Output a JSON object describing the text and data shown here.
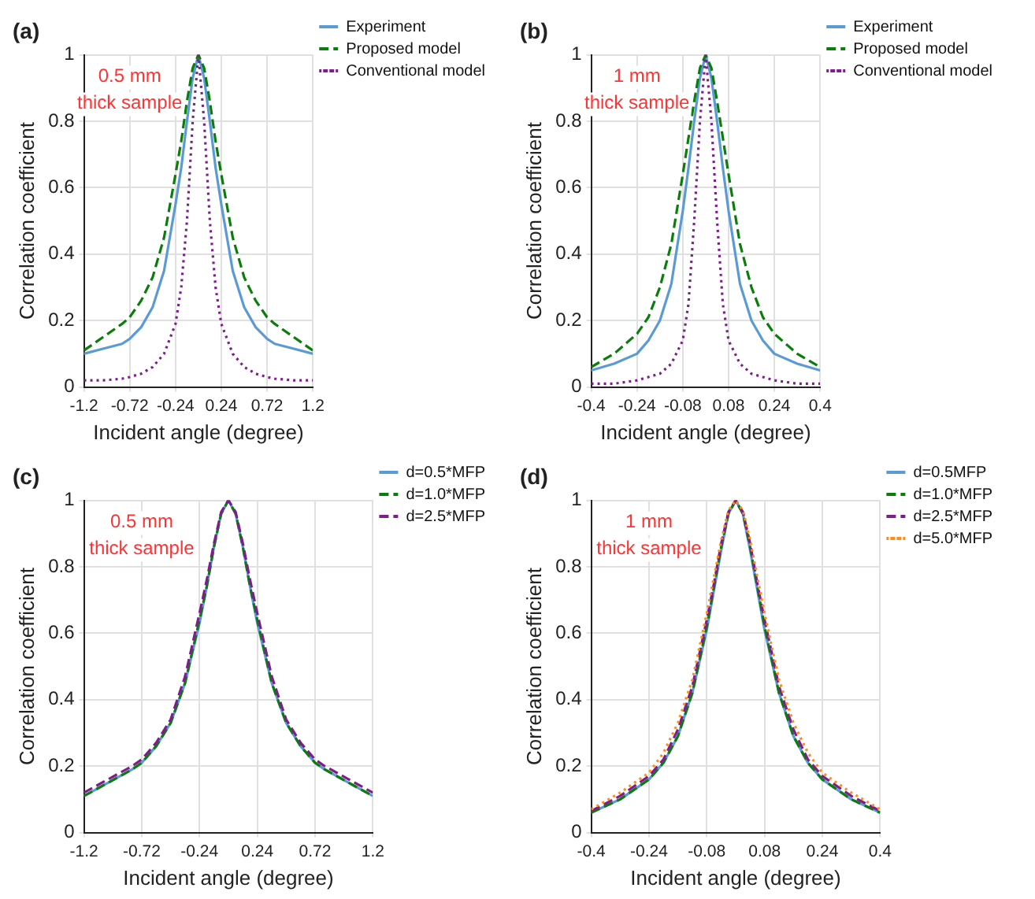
{
  "chart_data": [
    {
      "type": "line",
      "title": "(a)",
      "xlabel": "Incident angle (degree)",
      "ylabel": "Correlation coefficient",
      "annotations": [
        "0.5 mm\nthick sample"
      ],
      "x": [
        -1.2,
        -1.0,
        -0.8,
        -0.72,
        -0.6,
        -0.48,
        -0.36,
        -0.24,
        -0.18,
        -0.12,
        -0.06,
        0,
        0.06,
        0.12,
        0.18,
        0.24,
        0.36,
        0.48,
        0.6,
        0.72,
        0.8,
        1.0,
        1.2
      ],
      "xlim": [
        -1.2,
        1.2
      ],
      "xticks": [
        -1.2,
        -0.72,
        -0.24,
        0.24,
        0.72,
        1.2
      ],
      "ylim": [
        0,
        1
      ],
      "yticks": [
        0,
        0.2,
        0.4,
        0.6,
        0.8,
        1
      ],
      "grid": true,
      "legend": "top right",
      "marker": "none",
      "series": [
        {
          "name": "Experiment",
          "color": "#5b9bd5",
          "line_style": "solid",
          "values": [
            0.1,
            0.115,
            0.13,
            0.145,
            0.18,
            0.24,
            0.35,
            0.55,
            0.66,
            0.8,
            0.93,
            1,
            0.93,
            0.8,
            0.66,
            0.55,
            0.35,
            0.24,
            0.18,
            0.145,
            0.13,
            0.115,
            0.1
          ]
        },
        {
          "name": "Proposed model",
          "color": "#0a7d0a",
          "line_style": "dashed",
          "values": [
            0.11,
            0.15,
            0.19,
            0.21,
            0.26,
            0.33,
            0.45,
            0.64,
            0.74,
            0.86,
            0.96,
            1,
            0.96,
            0.86,
            0.74,
            0.64,
            0.45,
            0.33,
            0.26,
            0.21,
            0.19,
            0.15,
            0.11
          ]
        },
        {
          "name": "Conventional model",
          "color": "#7e1e8c",
          "line_style": "dotted",
          "values": [
            0.02,
            0.02,
            0.025,
            0.03,
            0.04,
            0.06,
            0.1,
            0.19,
            0.3,
            0.5,
            0.8,
            1,
            0.8,
            0.5,
            0.3,
            0.19,
            0.1,
            0.06,
            0.04,
            0.03,
            0.025,
            0.02,
            0.02
          ]
        }
      ]
    },
    {
      "type": "line",
      "title": "(b)",
      "xlabel": "Incident angle (degree)",
      "ylabel": "Correlation coefficient",
      "annotations": [
        "1 mm\nthick sample"
      ],
      "x": [
        -0.4,
        -0.32,
        -0.24,
        -0.2,
        -0.16,
        -0.12,
        -0.08,
        -0.06,
        -0.04,
        -0.02,
        0,
        0.02,
        0.04,
        0.06,
        0.08,
        0.12,
        0.16,
        0.2,
        0.24,
        0.32,
        0.4
      ],
      "xlim": [
        -0.4,
        0.4
      ],
      "xticks": [
        -0.4,
        -0.24,
        -0.08,
        0.08,
        0.24,
        0.4
      ],
      "ylim": [
        0,
        1
      ],
      "yticks": [
        0,
        0.2,
        0.4,
        0.6,
        0.8,
        1
      ],
      "grid": true,
      "legend": "top right",
      "marker": "none",
      "series": [
        {
          "name": "Experiment",
          "color": "#5b9bd5",
          "line_style": "solid",
          "values": [
            0.05,
            0.07,
            0.1,
            0.14,
            0.2,
            0.31,
            0.53,
            0.66,
            0.8,
            0.93,
            1,
            0.93,
            0.8,
            0.66,
            0.53,
            0.31,
            0.2,
            0.14,
            0.1,
            0.07,
            0.05
          ]
        },
        {
          "name": "Proposed model",
          "color": "#0a7d0a",
          "line_style": "dashed",
          "values": [
            0.06,
            0.1,
            0.16,
            0.21,
            0.3,
            0.43,
            0.64,
            0.75,
            0.86,
            0.96,
            1,
            0.96,
            0.86,
            0.75,
            0.64,
            0.43,
            0.3,
            0.21,
            0.16,
            0.1,
            0.06
          ]
        },
        {
          "name": "Conventional model",
          "color": "#7e1e8c",
          "line_style": "dotted",
          "values": [
            0.01,
            0.01,
            0.02,
            0.03,
            0.04,
            0.07,
            0.14,
            0.25,
            0.5,
            0.8,
            1,
            0.8,
            0.5,
            0.25,
            0.14,
            0.07,
            0.04,
            0.03,
            0.02,
            0.01,
            0.01
          ]
        }
      ]
    },
    {
      "type": "line",
      "title": "(c)",
      "xlabel": "Incident angle (degree)",
      "ylabel": "Correlation coefficient",
      "annotations": [
        "0.5 mm\nthick sample"
      ],
      "x": [
        -1.2,
        -1.0,
        -0.8,
        -0.72,
        -0.6,
        -0.48,
        -0.36,
        -0.24,
        -0.18,
        -0.12,
        -0.06,
        0,
        0.06,
        0.12,
        0.18,
        0.24,
        0.36,
        0.48,
        0.6,
        0.72,
        0.8,
        1.0,
        1.2
      ],
      "xlim": [
        -1.2,
        1.2
      ],
      "xticks": [
        -1.2,
        -0.72,
        -0.24,
        0.24,
        0.72,
        1.2
      ],
      "ylim": [
        0,
        1
      ],
      "yticks": [
        0,
        0.2,
        0.4,
        0.6,
        0.8,
        1
      ],
      "grid": true,
      "legend": "top right",
      "marker": "none",
      "series": [
        {
          "name": "d=0.5*MFP",
          "color": "#5b9bd5",
          "line_style": "solid",
          "values": [
            0.11,
            0.15,
            0.19,
            0.21,
            0.26,
            0.33,
            0.45,
            0.63,
            0.74,
            0.86,
            0.96,
            1,
            0.96,
            0.86,
            0.74,
            0.63,
            0.45,
            0.33,
            0.26,
            0.21,
            0.19,
            0.15,
            0.11
          ]
        },
        {
          "name": "d=1.0*MFP",
          "color": "#0a7d0a",
          "line_style": "dashed",
          "values": [
            0.11,
            0.15,
            0.19,
            0.21,
            0.26,
            0.33,
            0.45,
            0.64,
            0.74,
            0.86,
            0.96,
            1,
            0.96,
            0.86,
            0.74,
            0.64,
            0.45,
            0.33,
            0.26,
            0.21,
            0.19,
            0.15,
            0.11
          ]
        },
        {
          "name": "d=2.5*MFP",
          "color": "#7e1e8c",
          "line_style": "dashed",
          "values": [
            0.12,
            0.16,
            0.2,
            0.22,
            0.27,
            0.34,
            0.47,
            0.66,
            0.76,
            0.87,
            0.965,
            1,
            0.965,
            0.87,
            0.76,
            0.66,
            0.47,
            0.34,
            0.27,
            0.22,
            0.2,
            0.16,
            0.12
          ]
        }
      ]
    },
    {
      "type": "line",
      "title": "(d)",
      "xlabel": "Incident angle (degree)",
      "ylabel": "Correlation coefficient",
      "annotations": [
        "1 mm\nthick sample"
      ],
      "x": [
        -0.4,
        -0.32,
        -0.24,
        -0.2,
        -0.16,
        -0.12,
        -0.08,
        -0.06,
        -0.04,
        -0.02,
        0,
        0.02,
        0.04,
        0.06,
        0.08,
        0.12,
        0.16,
        0.2,
        0.24,
        0.32,
        0.4
      ],
      "xlim": [
        -0.4,
        0.4
      ],
      "xticks": [
        -0.4,
        -0.24,
        -0.08,
        0.08,
        0.24,
        0.4
      ],
      "ylim": [
        0,
        1
      ],
      "yticks": [
        0,
        0.2,
        0.4,
        0.6,
        0.8,
        1
      ],
      "grid": true,
      "legend": "top right",
      "marker": "none",
      "series": [
        {
          "name": "d=0.5MFP",
          "color": "#5b9bd5",
          "line_style": "solid",
          "values": [
            0.06,
            0.1,
            0.16,
            0.21,
            0.29,
            0.42,
            0.61,
            0.73,
            0.85,
            0.96,
            1,
            0.96,
            0.85,
            0.73,
            0.61,
            0.42,
            0.29,
            0.21,
            0.16,
            0.1,
            0.06
          ]
        },
        {
          "name": "d=1.0*MFP",
          "color": "#0a7d0a",
          "line_style": "dashed",
          "values": [
            0.06,
            0.1,
            0.16,
            0.21,
            0.29,
            0.42,
            0.62,
            0.74,
            0.86,
            0.96,
            1,
            0.96,
            0.86,
            0.74,
            0.62,
            0.42,
            0.29,
            0.21,
            0.16,
            0.1,
            0.06
          ]
        },
        {
          "name": "d=2.5*MFP",
          "color": "#7e1e8c",
          "line_style": "dashed",
          "values": [
            0.065,
            0.11,
            0.17,
            0.22,
            0.31,
            0.44,
            0.64,
            0.75,
            0.87,
            0.965,
            1,
            0.965,
            0.87,
            0.75,
            0.64,
            0.44,
            0.31,
            0.22,
            0.17,
            0.11,
            0.065
          ]
        },
        {
          "name": "d=5.0*MFP",
          "color": "#ff8c1a",
          "line_style": "dotted",
          "values": [
            0.07,
            0.12,
            0.18,
            0.24,
            0.33,
            0.46,
            0.66,
            0.77,
            0.88,
            0.97,
            1,
            0.97,
            0.88,
            0.77,
            0.66,
            0.46,
            0.33,
            0.24,
            0.18,
            0.12,
            0.07
          ]
        }
      ]
    }
  ]
}
